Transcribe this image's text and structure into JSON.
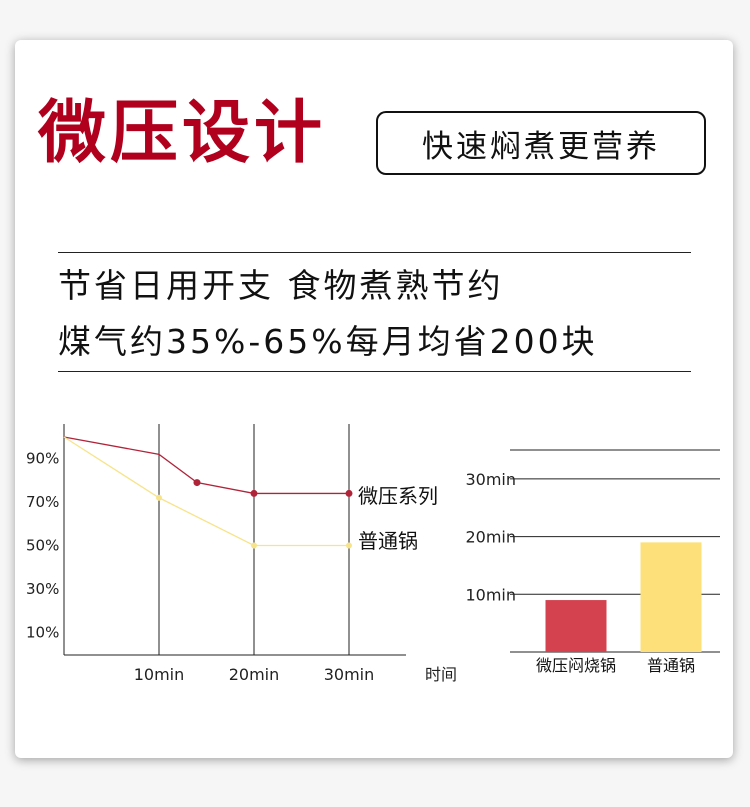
{
  "colors": {
    "brand": "#b0001e",
    "micro_line": "#b0243a",
    "normal_line": "#f7e48a",
    "bar_micro": "#d4424f",
    "bar_normal": "#fde07a",
    "axis": "#222222"
  },
  "header": {
    "title": "微压设计",
    "slogan": "快速焖煮更营养"
  },
  "headline": {
    "line1": "节省日用开支 食物煮熟节约",
    "line2": "煤气约35%-65%每月均省200块"
  },
  "chart_data": [
    {
      "type": "line",
      "xlabel": "时间",
      "x_ticks": [
        "10min",
        "20min",
        "30min"
      ],
      "y_ticks": [
        "90%",
        "70%",
        "50%",
        "30%",
        "10%"
      ],
      "series": [
        {
          "name": "微压系列",
          "color": "#b0243a",
          "points": [
            {
              "x": 0,
              "y": 100
            },
            {
              "x": 10,
              "y": 92
            },
            {
              "x": 14,
              "y": 79
            },
            {
              "x": 20,
              "y": 74
            },
            {
              "x": 30,
              "y": 74
            }
          ],
          "markers": [
            2,
            3,
            4
          ]
        },
        {
          "name": "普通锅",
          "color": "#f7e48a",
          "points": [
            {
              "x": 0,
              "y": 100
            },
            {
              "x": 10,
              "y": 72
            },
            {
              "x": 20,
              "y": 50
            },
            {
              "x": 30,
              "y": 50
            }
          ],
          "markers": [
            1,
            2,
            3
          ]
        }
      ],
      "grid": "vertical lines at x ticks"
    },
    {
      "type": "bar",
      "y_ticks": [
        "30min",
        "20min",
        "10min"
      ],
      "categories": [
        "微压闷烧锅",
        "普通锅"
      ],
      "values": [
        9,
        19
      ],
      "colors": [
        "#d4424f",
        "#fde07a"
      ],
      "ylim": [
        0,
        30
      ],
      "grid": "horizontal lines"
    }
  ]
}
